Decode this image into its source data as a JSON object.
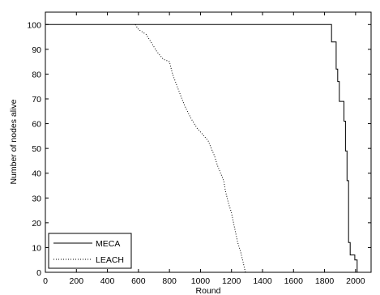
{
  "chart_data": {
    "type": "line",
    "title": "",
    "xlabel": "Round",
    "ylabel": "Number of nodes alive",
    "xlim": [
      0,
      2100
    ],
    "ylim": [
      0,
      105
    ],
    "xticks": [
      0,
      200,
      400,
      600,
      800,
      1000,
      1200,
      1400,
      1600,
      1800,
      2000
    ],
    "yticks": [
      0,
      10,
      20,
      30,
      40,
      50,
      60,
      70,
      80,
      90,
      100
    ],
    "grid": false,
    "legend_position": "bottom-left",
    "series": [
      {
        "name": "MECA",
        "style": "solid",
        "color": "#000000",
        "x": [
          0,
          1845,
          1845,
          1875,
          1875,
          1885,
          1885,
          1895,
          1895,
          1925,
          1925,
          1935,
          1935,
          1945,
          1945,
          1955,
          1955,
          1965,
          1965,
          1995,
          1995,
          2010,
          2010,
          2015
        ],
        "y": [
          100,
          100,
          93,
          93,
          82,
          82,
          77,
          77,
          69,
          69,
          61,
          61,
          49,
          49,
          37,
          37,
          12,
          12,
          7,
          7,
          5,
          5,
          0,
          0
        ]
      },
      {
        "name": "LEACH",
        "style": "dotted",
        "color": "#000000",
        "x": [
          580,
          600,
          650,
          690,
          720,
          760,
          800,
          820,
          850,
          880,
          900,
          940,
          980,
          1010,
          1050,
          1070,
          1090,
          1110,
          1130,
          1150,
          1160,
          1180,
          1200,
          1220,
          1240,
          1260,
          1275,
          1290
        ],
        "y": [
          100,
          98,
          96,
          92,
          89,
          86,
          85,
          80,
          75,
          70,
          67,
          62,
          58,
          56,
          53,
          50,
          47,
          43,
          40,
          37,
          33,
          28,
          24,
          18,
          12,
          8,
          4,
          0
        ]
      }
    ]
  }
}
